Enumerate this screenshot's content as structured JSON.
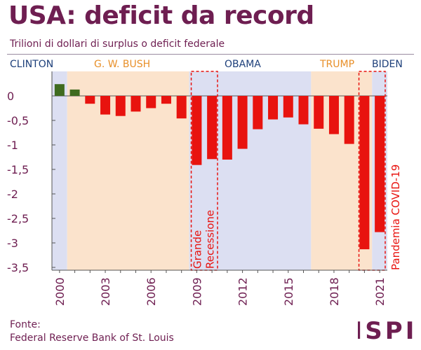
{
  "header": {
    "title": "USA: deficit da record",
    "subtitle": "Trilioni di dollari di surplus o deficit federale"
  },
  "eras": [
    {
      "label": "CLINTON",
      "color": "#1d3f7a"
    },
    {
      "label": "G. W. BUSH",
      "color": "#e8902a"
    },
    {
      "label": "OBAMA",
      "color": "#1d3f7a"
    },
    {
      "label": "TRUMP",
      "color": "#e8902a"
    },
    {
      "label": "BIDEN",
      "color": "#1d3f7a"
    }
  ],
  "annotations": {
    "recession": "Grande Recessione",
    "recession_lines": [
      "Grande",
      "Recessione"
    ],
    "pandemic": "Pandemia COVID-19"
  },
  "source": {
    "label": "Fonte:",
    "name": "Federal Reserve Bank of St. Louis"
  },
  "logo": {
    "text": "ISPI"
  },
  "colors": {
    "surplus": "#3f6b1f",
    "deficit": "#e8130f",
    "bg_republican": "#fbe3cc",
    "bg_democrat": "#dcdff2",
    "axis": "#555555",
    "annotation": "#e8130f",
    "label": "#6e1e51"
  },
  "chart_data": {
    "type": "bar",
    "title": "USA: deficit da record",
    "subtitle": "Trilioni di dollari di surplus o deficit federale",
    "categories": [
      "2000",
      "2001",
      "2002",
      "2003",
      "2004",
      "2005",
      "2006",
      "2007",
      "2008",
      "2009",
      "2010",
      "2011",
      "2012",
      "2013",
      "2014",
      "2015",
      "2016",
      "2017",
      "2018",
      "2019",
      "2020",
      "2021"
    ],
    "values": [
      0.24,
      0.13,
      -0.16,
      -0.38,
      -0.41,
      -0.32,
      -0.25,
      -0.16,
      -0.46,
      -1.41,
      -1.29,
      -1.3,
      -1.08,
      -0.68,
      -0.48,
      -0.44,
      -0.58,
      -0.67,
      -0.78,
      -0.98,
      -3.13,
      -2.78
    ],
    "xtick_labels": [
      "2000",
      "2003",
      "2006",
      "2009",
      "2012",
      "2015",
      "2018",
      "2021"
    ],
    "yticks": [
      0,
      -0.5,
      -1,
      -1.5,
      -2,
      -2.5,
      -3,
      -3.5
    ],
    "ytick_labels": [
      "0",
      "-0,5",
      "-1",
      "-1,5",
      "-2",
      "-2,5",
      "-3",
      "-3,5"
    ],
    "ylim": [
      -3.5,
      0.3
    ],
    "grid": false,
    "presidencies": [
      {
        "label": "CLINTON",
        "from": "2000",
        "to": "2000",
        "party": "D"
      },
      {
        "label": "G. W. BUSH",
        "from": "2001",
        "to": "2008",
        "party": "R"
      },
      {
        "label": "OBAMA",
        "from": "2009",
        "to": "2016",
        "party": "D"
      },
      {
        "label": "TRUMP",
        "from": "2017",
        "to": "2020",
        "party": "R"
      },
      {
        "label": "BIDEN",
        "from": "2021",
        "to": "2021",
        "party": "D"
      }
    ],
    "highlight_ranges": [
      {
        "label": "Grande Recessione",
        "from": "2009",
        "to": "2010"
      },
      {
        "label": "Pandemia COVID-19",
        "from": "2020",
        "to": "2021"
      }
    ]
  }
}
